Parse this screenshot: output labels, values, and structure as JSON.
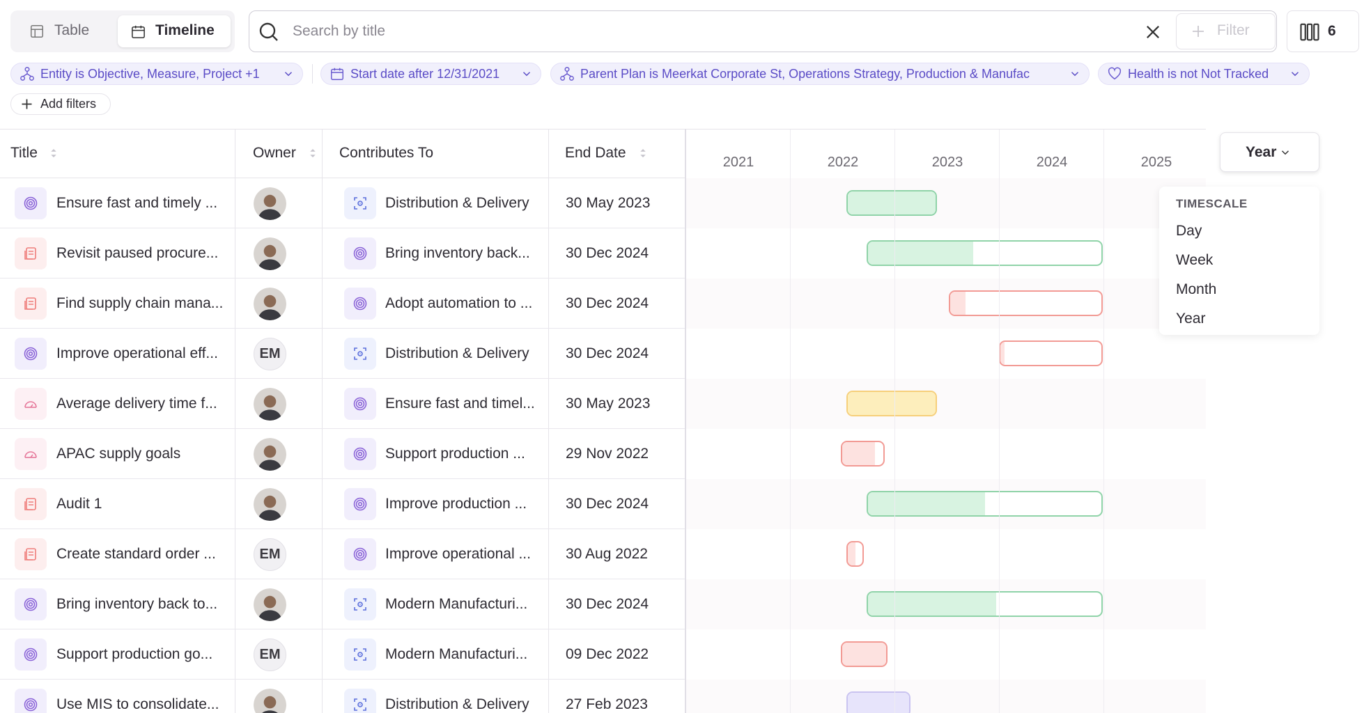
{
  "toolbar": {
    "tabs": [
      "Table",
      "Timeline"
    ],
    "search_placeholder": "Search by title",
    "filter_button": "Filter",
    "columns_count": "6"
  },
  "filters": [
    "Entity is Objective, Measure, Project +1",
    "Start date after 12/31/2021",
    "Parent Plan is Meerkat Corporate St, Operations Strategy, Production & Manufac",
    "Health is not Not Tracked"
  ],
  "add_filters": "Add filters",
  "table": {
    "headers": [
      "Title",
      "Owner",
      "Contributes To",
      "End Date"
    ],
    "rows": [
      {
        "title": "Ensure fast and timely ...",
        "contributes_to": "Distribution & Delivery",
        "end_date": "30 May 2023"
      },
      {
        "title": "Revisit paused procure...",
        "contributes_to": "Bring inventory back...",
        "end_date": "30 Dec 2024"
      },
      {
        "title": "Find supply chain mana...",
        "contributes_to": "Adopt automation to ...",
        "end_date": "30 Dec 2024"
      },
      {
        "title": "Improve operational eff...",
        "owner": "EM",
        "contributes_to": "Distribution & Delivery",
        "end_date": "30 Dec 2024"
      },
      {
        "title": "Average delivery time f...",
        "contributes_to": "Ensure fast and timel...",
        "end_date": "30 May 2023"
      },
      {
        "title": "APAC supply goals",
        "contributes_to": "Support production ...",
        "end_date": "29 Nov 2022"
      },
      {
        "title": "Audit 1",
        "contributes_to": "Improve production ...",
        "end_date": "30 Dec 2024"
      },
      {
        "title": "Create standard order ...",
        "owner": "EM",
        "contributes_to": "Improve operational ...",
        "end_date": "30 Aug 2022"
      },
      {
        "title": "Bring inventory back to...",
        "contributes_to": "Modern Manufacturi...",
        "end_date": "30 Dec 2024"
      },
      {
        "title": "Support production go...",
        "owner": "EM",
        "contributes_to": "Modern Manufacturi...",
        "end_date": "09 Dec 2022"
      },
      {
        "title": "Use MIS to consolidate...",
        "contributes_to": "Distribution & Delivery",
        "end_date": "27 Feb 2023"
      }
    ]
  },
  "timeline": {
    "years": [
      "2021",
      "2022",
      "2023",
      "2024",
      "2025"
    ],
    "timescale_button": "Year",
    "timescale_heading": "TIMESCALE",
    "timescale_options": [
      "Day",
      "Week",
      "Month",
      "Year"
    ]
  }
}
